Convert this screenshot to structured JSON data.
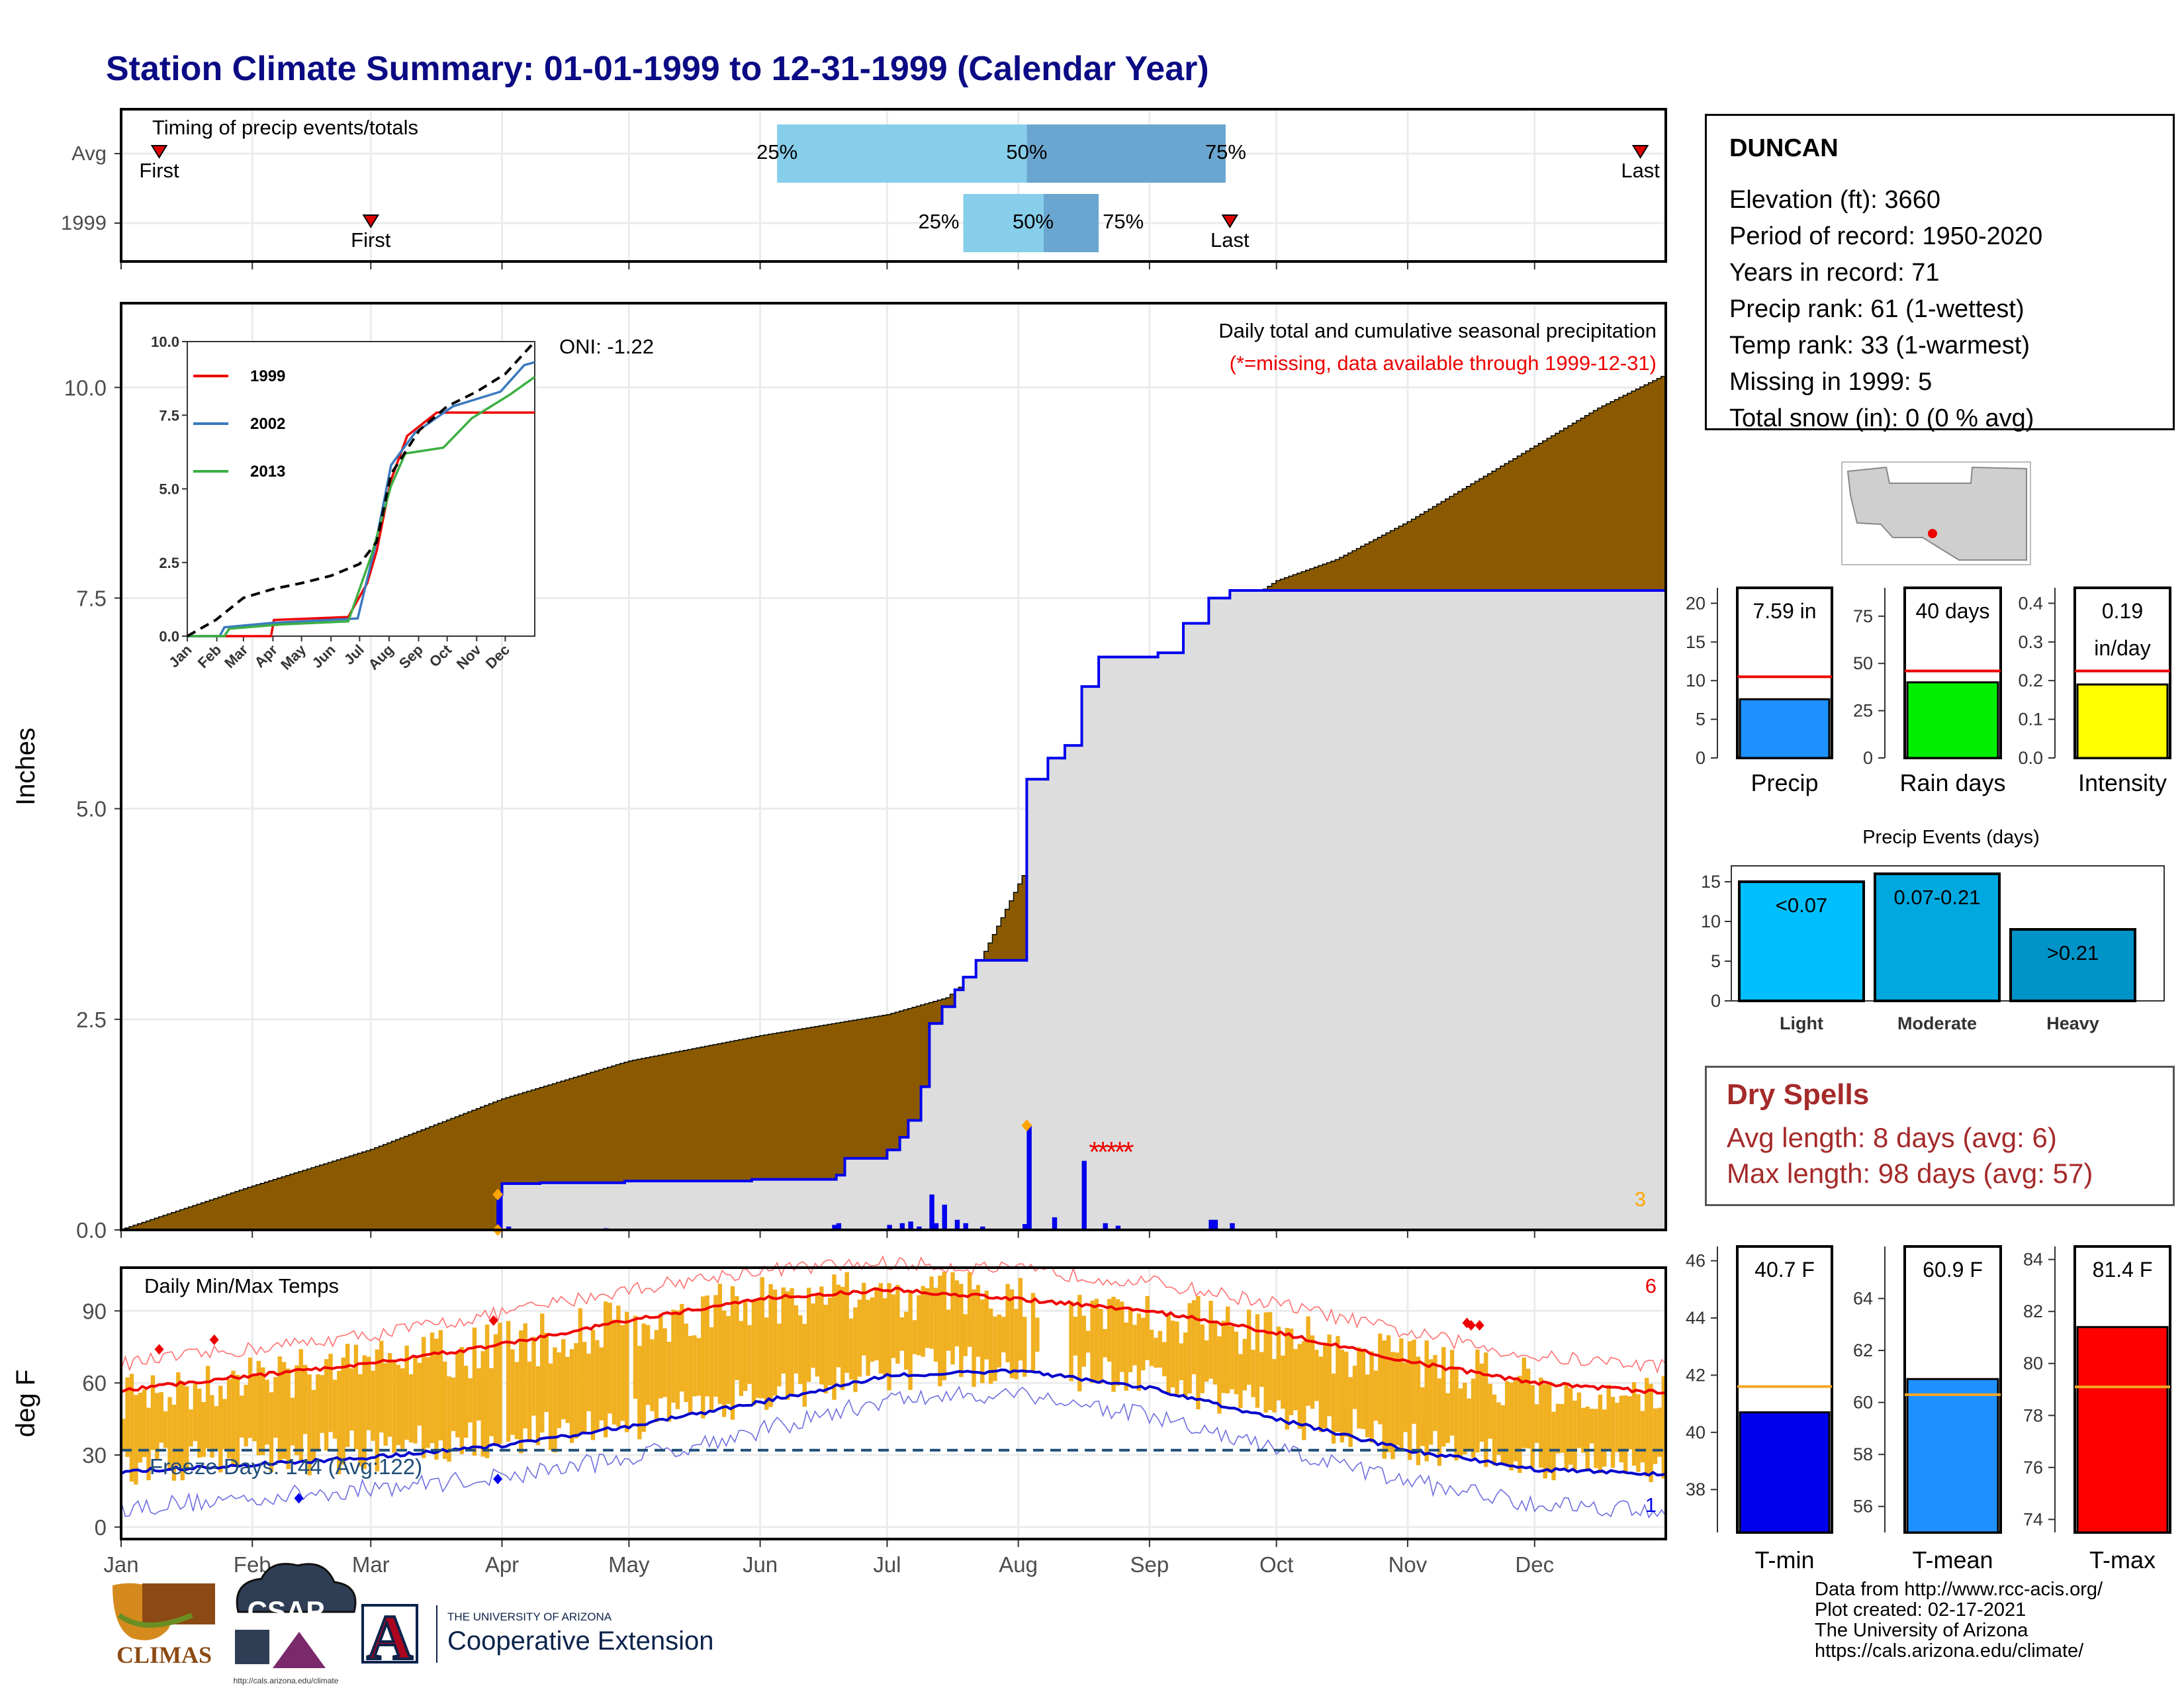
{
  "title": "Station Climate Summary: 01-01-1999 to 12-31-1999 (Calendar Year)",
  "station": {
    "name": "DUNCAN",
    "lines": [
      "Elevation (ft): 3660",
      "Period of record: 1950-2020",
      "Years in record: 71",
      "Precip rank: 61 (1-wettest)",
      "Temp rank: 33 (1-warmest)",
      "Missing in 1999: 5",
      "Total snow (in): 0 (0 % avg)"
    ]
  },
  "dry_spells": {
    "heading": "Dry Spells",
    "avg": "Avg length: 8 days (avg: 6)",
    "max": "Max length: 98 days (avg: 57)"
  },
  "credits": [
    "Data from http://www.rcc-acis.org/",
    "Plot created: 02-17-2021",
    "The University of Arizona",
    "https://cals.arizona.edu/climate/"
  ],
  "logos": {
    "climas": "CLIMAS",
    "csap": "CSAP",
    "csap_url": "http://cals.arizona.edu/climate",
    "ua_line1": "THE UNIVERSITY OF ARIZONA",
    "ua_line2": "Cooperative Extension",
    "ua_letter": "A"
  },
  "colors": {
    "title": "#0b0b85",
    "cum_1999_fill": "#dddddd",
    "cum_1999_line": "#0000ee",
    "cum_avg_fill": "#8b5a00",
    "above_avg_fill": "#008000",
    "daily_bar": "#0000ee",
    "temp_bar": "#f0b020",
    "tmax_avg": "#ee0000",
    "tmin_avg": "#0000cc",
    "timing_light": "#87ceeb",
    "timing_dark": "#6aa6cf"
  },
  "chart_data": [
    {
      "type": "bar",
      "id": "timing",
      "title": "Timing of precip events/totals",
      "rows": [
        {
          "label": "Avg",
          "first_day": 10,
          "q25_day": 156,
          "q50_day": 215,
          "q75_day": 262,
          "last_day": 360
        },
        {
          "label": "1999",
          "first_day": 60,
          "q25_day": 200,
          "q50_day": 219,
          "q75_day": 232,
          "last_day": 263
        }
      ],
      "marker_labels": {
        "first": "First",
        "last": "Last",
        "q25": "25%",
        "q50": "50%",
        "q75": "75%"
      },
      "xlim": [
        1,
        366
      ]
    },
    {
      "type": "area",
      "id": "precip",
      "title": "Daily total and cumulative seasonal precipitation",
      "subtitle": "(*=missing, data available through 1999-12-31)",
      "oni": "ONI: -1.22",
      "ylabel": "Inches",
      "ylim": [
        0,
        11
      ],
      "yticks": [
        0.0,
        2.5,
        5.0,
        7.5,
        10.0
      ],
      "ytick_labels": [
        "0.0",
        "2.5",
        "5.0",
        "7.5",
        "10.0"
      ],
      "xlim": [
        1,
        366
      ],
      "month_labels": [
        "Jan",
        "Feb",
        "Mar",
        "Apr",
        "May",
        "Jun",
        "Jul",
        "Aug",
        "Sep",
        "Oct",
        "Nov",
        "Dec"
      ],
      "avg_cum": [
        [
          1,
          0
        ],
        [
          31,
          0.5
        ],
        [
          60,
          0.95
        ],
        [
          91,
          1.55
        ],
        [
          121,
          2.0
        ],
        [
          152,
          2.3
        ],
        [
          182,
          2.55
        ],
        [
          196,
          2.75
        ],
        [
          202,
          3.0
        ],
        [
          207,
          3.5
        ],
        [
          212,
          4.0
        ],
        [
          216,
          4.4
        ],
        [
          222,
          5.2
        ],
        [
          230,
          5.65
        ],
        [
          238,
          6.1
        ],
        [
          246,
          6.5
        ],
        [
          253,
          6.85
        ],
        [
          260,
          7.2
        ],
        [
          268,
          7.5
        ],
        [
          274,
          7.7
        ],
        [
          288,
          7.95
        ],
        [
          305,
          8.4
        ],
        [
          320,
          8.85
        ],
        [
          335,
          9.3
        ],
        [
          350,
          9.75
        ],
        [
          366,
          10.15
        ]
      ],
      "cum_1999": [
        [
          1,
          0
        ],
        [
          89,
          0
        ],
        [
          90,
          0.42
        ],
        [
          91,
          0.55
        ],
        [
          100,
          0.56
        ],
        [
          120,
          0.58
        ],
        [
          150,
          0.6
        ],
        [
          170,
          0.65
        ],
        [
          172,
          0.85
        ],
        [
          182,
          0.95
        ],
        [
          185,
          1.1
        ],
        [
          187,
          1.3
        ],
        [
          190,
          1.7
        ],
        [
          192,
          2.45
        ],
        [
          195,
          2.65
        ],
        [
          198,
          2.85
        ],
        [
          200,
          3.0
        ],
        [
          203,
          3.2
        ],
        [
          214,
          3.2
        ],
        [
          215,
          5.35
        ],
        [
          218,
          5.35
        ],
        [
          220,
          5.6
        ],
        [
          224,
          5.75
        ],
        [
          228,
          6.45
        ],
        [
          232,
          6.8
        ],
        [
          244,
          6.8
        ],
        [
          246,
          6.85
        ],
        [
          252,
          7.2
        ],
        [
          258,
          7.5
        ],
        [
          263,
          7.59
        ],
        [
          366,
          7.59
        ]
      ],
      "daily_bars": [
        [
          90,
          0.42
        ],
        [
          92,
          0.04
        ],
        [
          115,
          0.02
        ],
        [
          169,
          0.06
        ],
        [
          170,
          0.08
        ],
        [
          182,
          0.06
        ],
        [
          185,
          0.08
        ],
        [
          187,
          0.1
        ],
        [
          189,
          0.04
        ],
        [
          192,
          0.42
        ],
        [
          193,
          0.08
        ],
        [
          195,
          0.3
        ],
        [
          198,
          0.12
        ],
        [
          200,
          0.08
        ],
        [
          204,
          0.04
        ],
        [
          214,
          0.07
        ],
        [
          215,
          1.24
        ],
        [
          221,
          0.15
        ],
        [
          228,
          0.82
        ],
        [
          233,
          0.08
        ],
        [
          236,
          0.05
        ],
        [
          258,
          0.12
        ],
        [
          259,
          0.12
        ],
        [
          263,
          0.08
        ]
      ],
      "missing_days": [
        231,
        233,
        235,
        237,
        239
      ],
      "bottom_right_count": "3"
    },
    {
      "type": "line",
      "id": "inset",
      "series": [
        {
          "name": "1999",
          "color": "#ee0000",
          "points": [
            [
              1,
              0
            ],
            [
              89,
              0
            ],
            [
              92,
              0.55
            ],
            [
              170,
              0.65
            ],
            [
              190,
              1.8
            ],
            [
              200,
              2.9
            ],
            [
              215,
              5.3
            ],
            [
              232,
              6.8
            ],
            [
              263,
              7.59
            ],
            [
              366,
              7.59
            ]
          ]
        },
        {
          "name": "2002",
          "color": "#3a7abf",
          "points": [
            [
              1,
              0
            ],
            [
              35,
              0
            ],
            [
              40,
              0.3
            ],
            [
              90,
              0.45
            ],
            [
              180,
              0.6
            ],
            [
              198,
              3.0
            ],
            [
              215,
              5.8
            ],
            [
              240,
              6.9
            ],
            [
              280,
              7.8
            ],
            [
              330,
              8.3
            ],
            [
              355,
              9.2
            ],
            [
              366,
              9.3
            ]
          ]
        },
        {
          "name": "2013",
          "color": "#3cb043",
          "points": [
            [
              1,
              0
            ],
            [
              40,
              0
            ],
            [
              45,
              0.25
            ],
            [
              100,
              0.4
            ],
            [
              170,
              0.5
            ],
            [
              195,
              2.8
            ],
            [
              215,
              5.1
            ],
            [
              230,
              6.2
            ],
            [
              270,
              6.4
            ],
            [
              300,
              7.4
            ],
            [
              340,
              8.2
            ],
            [
              366,
              8.8
            ]
          ]
        },
        {
          "name": "",
          "color": "#000000",
          "dashed": true,
          "points": [
            [
              1,
              0
            ],
            [
              31,
              0.55
            ],
            [
              60,
              1.3
            ],
            [
              91,
              1.6
            ],
            [
              121,
              1.8
            ],
            [
              152,
              2.05
            ],
            [
              182,
              2.45
            ],
            [
              200,
              3.2
            ],
            [
              215,
              5.5
            ],
            [
              245,
              7.0
            ],
            [
              274,
              7.8
            ],
            [
              305,
              8.3
            ],
            [
              335,
              8.9
            ],
            [
              366,
              10.2
            ]
          ]
        }
      ],
      "ylim": [
        0,
        10
      ],
      "yticks": [
        "0.0",
        "2.5",
        "5.0",
        "7.5",
        "10.0"
      ],
      "month_labels": [
        "Jan",
        "Feb",
        "Mar",
        "Apr",
        "May",
        "Jun",
        "Jul",
        "Aug",
        "Sep",
        "Oct",
        "Nov",
        "Dec"
      ]
    },
    {
      "type": "bar",
      "id": "temps",
      "title": "Daily Min/Max Temps",
      "ylabel": "deg F",
      "ylim": [
        -5,
        108
      ],
      "yticks": [
        0,
        30,
        60,
        90
      ],
      "freeze_line": 32,
      "freeze_label": "Freeze Days: 144 (Avg:122)",
      "top_right_count": "6",
      "bottom_right_count": "1",
      "month_labels": [
        "Jan",
        "Feb",
        "Mar",
        "Apr",
        "May",
        "Jun",
        "Jul",
        "Aug",
        "Sep",
        "Oct",
        "Nov",
        "Dec"
      ],
      "tmax_avg": [
        [
          1,
          57
        ],
        [
          31,
          63
        ],
        [
          60,
          68
        ],
        [
          91,
          76
        ],
        [
          121,
          86
        ],
        [
          152,
          95
        ],
        [
          182,
          99
        ],
        [
          213,
          95
        ],
        [
          244,
          90
        ],
        [
          274,
          81
        ],
        [
          305,
          69
        ],
        [
          335,
          60
        ],
        [
          366,
          56
        ]
      ],
      "tmin_avg": [
        [
          1,
          23
        ],
        [
          31,
          26
        ],
        [
          60,
          29
        ],
        [
          91,
          34
        ],
        [
          121,
          42
        ],
        [
          152,
          52
        ],
        [
          182,
          63
        ],
        [
          213,
          65
        ],
        [
          244,
          58
        ],
        [
          274,
          45
        ],
        [
          305,
          32
        ],
        [
          335,
          24
        ],
        [
          366,
          22
        ]
      ],
      "tmax_record_avg": [
        [
          1,
          68
        ],
        [
          31,
          74
        ],
        [
          60,
          80
        ],
        [
          91,
          89
        ],
        [
          121,
          99
        ],
        [
          152,
          107
        ],
        [
          182,
          110
        ],
        [
          213,
          107
        ],
        [
          244,
          102
        ],
        [
          274,
          93
        ],
        [
          305,
          81
        ],
        [
          335,
          71
        ],
        [
          366,
          67
        ]
      ],
      "tmin_record_avg": [
        [
          1,
          8
        ],
        [
          31,
          12
        ],
        [
          60,
          16
        ],
        [
          91,
          21
        ],
        [
          121,
          29
        ],
        [
          152,
          40
        ],
        [
          182,
          53
        ],
        [
          213,
          56
        ],
        [
          244,
          46
        ],
        [
          274,
          32
        ],
        [
          305,
          19
        ],
        [
          335,
          10
        ],
        [
          366,
          7
        ]
      ],
      "record_high_marks": [
        [
          10,
          74
        ],
        [
          23,
          78
        ],
        [
          89,
          86
        ],
        [
          319,
          85
        ],
        [
          320,
          84
        ],
        [
          322,
          84
        ]
      ],
      "record_low_marks": [
        [
          43,
          12
        ],
        [
          90,
          20
        ]
      ]
    },
    {
      "type": "bar",
      "id": "precip_summary",
      "panels": [
        {
          "label": "Precip",
          "value": 7.59,
          "value_text": "7.59 in",
          "avg": 10.5,
          "ylim": [
            0,
            22
          ],
          "yticks": [
            0,
            5,
            10,
            15,
            20
          ],
          "color": "#1e90ff"
        },
        {
          "label": "Rain days",
          "value": 40,
          "value_text": "40 days",
          "avg": 46,
          "ylim": [
            0,
            90
          ],
          "yticks": [
            0,
            25,
            50,
            75
          ],
          "color": "#00ee00"
        },
        {
          "label": "Intensity",
          "value": 0.19,
          "value_text": "0.19 in/day",
          "avg": 0.225,
          "ylim": [
            0,
            0.44
          ],
          "yticks": [
            "0.0",
            "0.1",
            "0.2",
            "0.3",
            "0.4"
          ],
          "color": "#ffff00"
        }
      ]
    },
    {
      "type": "bar",
      "id": "precip_events",
      "title": "Precip Events (days)",
      "categories": [
        "Light",
        "Moderate",
        "Heavy"
      ],
      "bin_labels": [
        "<0.07",
        "0.07-0.21",
        ">0.21"
      ],
      "values": [
        15,
        16,
        9
      ],
      "colors": [
        "#00bfff",
        "#00a8e0",
        "#0093c8"
      ],
      "ylim": [
        0,
        17
      ],
      "yticks": [
        0,
        5,
        10,
        15
      ]
    },
    {
      "type": "bar",
      "id": "temp_summary",
      "panels": [
        {
          "label": "T-min",
          "value": 40.7,
          "value_text": "40.7 F",
          "avg": 41.6,
          "ylim": [
            36.5,
            46.5
          ],
          "yticks": [
            38,
            40,
            42,
            44,
            46
          ],
          "color": "#0000ee"
        },
        {
          "label": "T-mean",
          "value": 60.9,
          "value_text": "60.9 F",
          "avg": 60.3,
          "ylim": [
            55,
            66
          ],
          "yticks": [
            56,
            58,
            60,
            62,
            64
          ],
          "color": "#1e90ff"
        },
        {
          "label": "T-max",
          "value": 81.4,
          "value_text": "81.4 F",
          "avg": 79.1,
          "ylim": [
            73.5,
            84.5
          ],
          "yticks": [
            74,
            76,
            78,
            80,
            82,
            84
          ],
          "color": "#ff0000"
        }
      ]
    }
  ]
}
